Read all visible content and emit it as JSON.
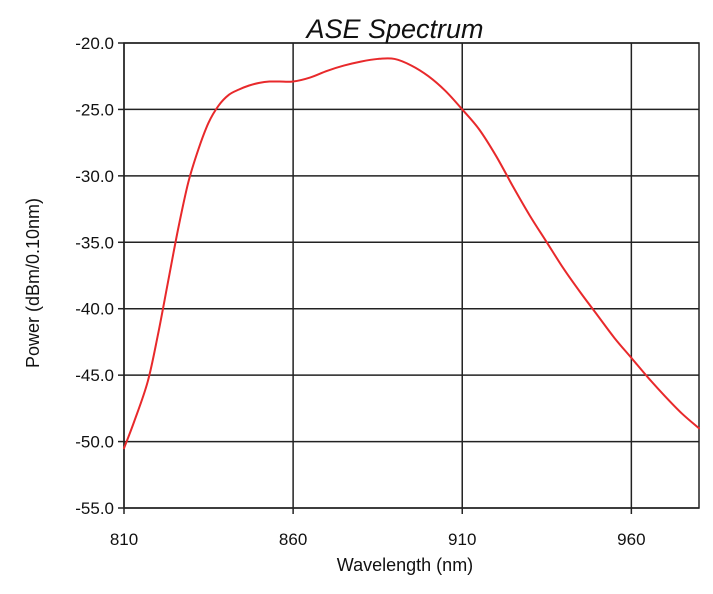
{
  "chart_data": {
    "type": "line",
    "title": "ASE Spectrum",
    "xlabel": "Wavelength (nm)",
    "ylabel": "Power (dBm/0.10nm)",
    "xlim": [
      810,
      980
    ],
    "ylim": [
      -55,
      -20
    ],
    "xticks": [
      810,
      860,
      910,
      960
    ],
    "xtick_labels": [
      "810",
      "860",
      "910",
      "960"
    ],
    "yticks": [
      -20,
      -25,
      -30,
      -35,
      -40,
      -45,
      -50,
      -55
    ],
    "ytick_labels": [
      "-20.0",
      "-25.0",
      "-30.0",
      "-35.0",
      "-40.0",
      "-45.0",
      "-50.0",
      "-55.0"
    ],
    "grid": true,
    "line_color": "#e8292b",
    "series": [
      {
        "x": [
          810,
          813,
          817,
          820,
          823,
          826,
          829,
          832,
          835,
          838,
          841,
          844,
          847,
          850,
          853,
          856,
          860,
          865,
          870,
          875,
          880,
          885,
          890,
          895,
          900,
          905,
          910,
          915,
          920,
          925,
          930,
          935,
          940,
          945,
          950,
          955,
          960,
          965,
          970,
          975,
          980
        ],
        "y": [
          -50.5,
          -48.5,
          -45.5,
          -42.0,
          -38.0,
          -34.0,
          -30.5,
          -28.0,
          -26.0,
          -24.7,
          -23.9,
          -23.5,
          -23.2,
          -23.0,
          -22.9,
          -22.9,
          -22.9,
          -22.6,
          -22.1,
          -21.7,
          -21.4,
          -21.2,
          -21.2,
          -21.7,
          -22.5,
          -23.6,
          -25.0,
          -26.5,
          -28.5,
          -30.8,
          -33.0,
          -35.0,
          -37.0,
          -38.8,
          -40.5,
          -42.2,
          -43.7,
          -45.2,
          -46.6,
          -47.9,
          -49.0
        ]
      }
    ]
  }
}
